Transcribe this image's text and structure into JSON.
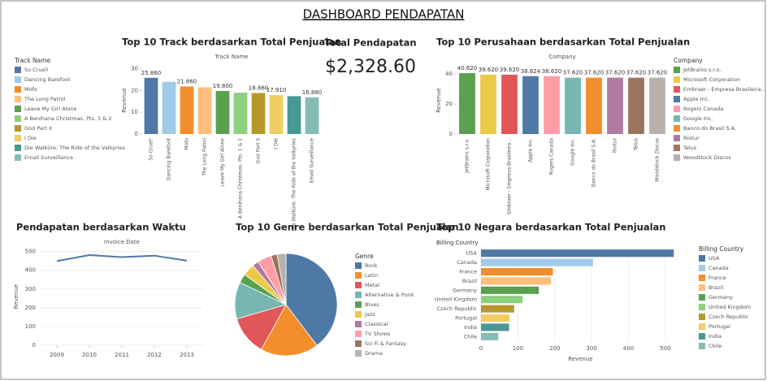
{
  "title": "DASHBOARD PENDAPATAN",
  "kpi": {
    "title": "Total Pendapatan",
    "value": "$2,328.60"
  },
  "chart_data": [
    {
      "type": "bar",
      "title": "Top 10 Track berdasarkan Total Penjualan",
      "x_label": "Track Name",
      "y_label": "Revenue",
      "legend_title": "Track Name",
      "categories": [
        "So Cruel!",
        "Dancing Barefoot",
        "Mofo",
        "The Long Patrol",
        "Leave My Girl Alone",
        "A Benihana Christmas, Pts. 1 & 2",
        "God Part II",
        "I Die",
        "Die Walküre: The Ride of the Valkyries",
        "Email Surveillance"
      ],
      "values": [
        25.86,
        24.0,
        21.86,
        21.5,
        19.8,
        19.0,
        18.86,
        17.91,
        17.4,
        16.86
      ],
      "value_labels": [
        "25.860",
        null,
        "21.860",
        null,
        "19.800",
        null,
        "18.860",
        "17.910",
        null,
        "16.860"
      ],
      "colors": [
        "#4e79a7",
        "#a0cbe8",
        "#f28e2b",
        "#ffbe7d",
        "#59a14f",
        "#8cd17d",
        "#b6992d",
        "#f1ce63",
        "#499894",
        "#86bcb6"
      ],
      "ylim": [
        0,
        31
      ],
      "yticks": [
        0,
        10,
        20,
        30
      ],
      "grid": false
    },
    {
      "type": "bar",
      "title": "Top 10 Perusahaan berdasarkan Total Penjualan",
      "x_label": "Company",
      "y_label": "Revenue",
      "legend_title": "Company",
      "categories": [
        "JetBrains s.r.o.",
        "Microsoft Corporation",
        "Embraer - Empresa Brasileira...",
        "Apple Inc.",
        "Rogers Canada",
        "Google Inc.",
        "Banco do Brasil S.A.",
        "Riotur",
        "Telus",
        "Woodstock Discos"
      ],
      "values": [
        40.62,
        39.62,
        39.62,
        38.624,
        38.62,
        37.62,
        37.62,
        37.62,
        37.62,
        37.62
      ],
      "value_labels": [
        "40.620",
        "39.620",
        "39.620",
        "38.624",
        "38.620",
        "37.620",
        "37.620",
        "37.620",
        "37.620",
        "37.620"
      ],
      "colors": [
        "#59a14f",
        "#edc948",
        "#e15759",
        "#4e79a7",
        "#ff9da7",
        "#76b7b2",
        "#f28e2b",
        "#b07aa1",
        "#9c755f",
        "#bab0ac"
      ],
      "ylim": [
        0,
        45
      ],
      "yticks": [
        0,
        20,
        40
      ],
      "grid": false
    },
    {
      "type": "line",
      "title": "Pendapatan berdasarkan Waktu",
      "x_label": "Invoice Date",
      "y_label": "Revenue",
      "x": [
        2009,
        2010,
        2011,
        2012,
        2013
      ],
      "values": [
        449,
        481,
        470,
        478,
        451
      ],
      "color": "#4e79a7",
      "xlim": [
        2008.5,
        2013.5
      ],
      "xticks": [
        2009,
        2010,
        2011,
        2012,
        2013
      ],
      "ylim": [
        0,
        520
      ],
      "yticks": [
        0,
        100,
        200,
        300,
        400,
        500
      ],
      "grid": true
    },
    {
      "type": "pie",
      "title": "Top 10 Genre berdasarkan Total Penjualan",
      "legend_title": "Genre",
      "categories": [
        "Rock",
        "Latin",
        "Metal",
        "Alternative & Punk",
        "Blues",
        "Jazz",
        "Classical",
        "TV Shows",
        "Sci Fi & Fantasy",
        "Drama"
      ],
      "values": [
        827,
        382,
        261,
        242,
        60,
        79,
        41,
        94,
        40,
        58
      ],
      "colors": [
        "#4e79a7",
        "#f28e2b",
        "#e15759",
        "#76b7b2",
        "#59a14f",
        "#edc948",
        "#b07aa1",
        "#ff9da7",
        "#9c755f",
        "#bab0ac"
      ]
    },
    {
      "type": "hbar",
      "title": "Top 10 Negara berdasarkan Total Penjualan",
      "y_label": "Billing Country",
      "x_label": "Revenue",
      "legend_title": "Billing Country",
      "categories": [
        "USA",
        "Canada",
        "France",
        "Brazil",
        "Germany",
        "United Kingdom",
        "Czech Republic",
        "Portugal",
        "India",
        "Chile"
      ],
      "values": [
        523,
        304,
        195,
        190,
        157,
        113,
        90,
        77,
        76,
        47
      ],
      "colors": [
        "#4e79a7",
        "#a0cbe8",
        "#f28e2b",
        "#ffbe7d",
        "#59a14f",
        "#8cd17d",
        "#b6992d",
        "#f1ce63",
        "#499894",
        "#86bcb6"
      ],
      "xlim": [
        0,
        540
      ],
      "xticks": [
        0,
        100,
        200,
        300,
        400,
        500
      ],
      "grid": true
    }
  ]
}
